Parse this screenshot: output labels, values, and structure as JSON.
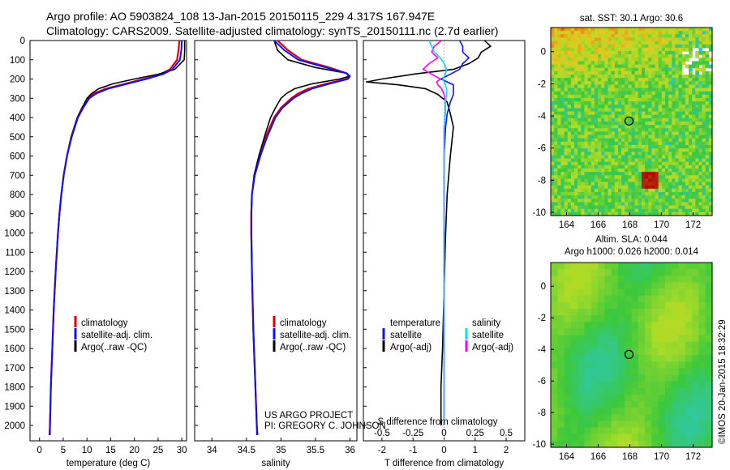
{
  "header": {
    "line1": "Argo profile: AO 5903824_108 13-Jan-2015 20150115_229 4.317S 167.947E",
    "line2": "Climatology: CARS2009. Satellite-adjusted climatology: synTS_20150111.nc (2.7d earlier)"
  },
  "credit": "©IMOS 20-Jan-2015 18:32:29",
  "project": {
    "line1": "US ARGO PROJECT",
    "line2": "PI: GREGORY C. JOHNSON"
  },
  "colors": {
    "climatology": "#e00000",
    "satellite": "#1010ff",
    "argo": "#000000",
    "sal_satellite": "#00e0ff",
    "sal_argo": "#ff00ff"
  },
  "chart_data": [
    {
      "type": "line",
      "name": "temperature",
      "xlabel": "temperature (deg C)",
      "ylabel": "",
      "xlim": [
        -2,
        31
      ],
      "ylim": [
        2080,
        0
      ],
      "xticks": [
        0,
        5,
        10,
        15,
        20,
        25,
        30
      ],
      "yticks": [
        0,
        100,
        200,
        300,
        400,
        500,
        600,
        700,
        800,
        900,
        1000,
        1100,
        1200,
        1300,
        1400,
        1500,
        1600,
        1700,
        1800,
        1900,
        2000
      ],
      "legend": [
        "climatology",
        "satellite-adj. clim.",
        "Argo(..raw -QC)"
      ],
      "depth": [
        0,
        50,
        100,
        150,
        175,
        200,
        225,
        250,
        275,
        300,
        350,
        400,
        500,
        600,
        700,
        800,
        900,
        1000,
        1200,
        1400,
        1600,
        1800,
        2000,
        2050
      ],
      "series": [
        {
          "name": "climatology",
          "values": [
            29.5,
            29.3,
            29.0,
            27.5,
            25.5,
            22.0,
            18.0,
            14.0,
            11.5,
            10.2,
            9.0,
            8.0,
            6.7,
            5.8,
            5.1,
            4.6,
            4.2,
            3.9,
            3.4,
            3.0,
            2.7,
            2.4,
            2.2,
            2.1
          ]
        },
        {
          "name": "satellite",
          "values": [
            30.0,
            29.9,
            29.6,
            28.0,
            26.0,
            22.5,
            18.5,
            14.5,
            12.0,
            10.5,
            9.2,
            8.1,
            6.8,
            5.8,
            5.1,
            4.6,
            4.2,
            3.9,
            3.4,
            3.0,
            2.7,
            2.4,
            2.2,
            2.2
          ]
        },
        {
          "name": "argo",
          "values": [
            30.6,
            30.6,
            30.5,
            28.5,
            25.0,
            20.0,
            15.5,
            12.5,
            11.0,
            10.0,
            9.0,
            8.0,
            6.7,
            5.8,
            5.1,
            4.6,
            4.2,
            3.9,
            3.4,
            3.0,
            2.7,
            2.4,
            2.2,
            2.2
          ]
        }
      ]
    },
    {
      "type": "line",
      "name": "salinity",
      "xlabel": "salinity",
      "xlim": [
        33.75,
        36.1
      ],
      "ylim": [
        2080,
        0
      ],
      "xticks": [
        34,
        34.5,
        35,
        35.5,
        36
      ],
      "legend": [
        "climatology",
        "satellite-adj. clim.",
        "Argo(..raw -QC)"
      ],
      "depth": [
        0,
        50,
        100,
        140,
        170,
        185,
        200,
        225,
        250,
        275,
        300,
        350,
        400,
        500,
        600,
        700,
        800,
        900,
        1000,
        1200,
        1500,
        1800,
        2000,
        2050
      ],
      "series": [
        {
          "name": "climatology",
          "values": [
            34.95,
            35.1,
            35.3,
            35.7,
            35.95,
            35.98,
            35.95,
            35.65,
            35.4,
            35.25,
            35.15,
            35.0,
            34.9,
            34.78,
            34.7,
            34.62,
            34.58,
            34.57,
            34.57,
            34.58,
            34.6,
            34.63,
            34.65,
            34.66
          ]
        },
        {
          "name": "satellite",
          "values": [
            34.9,
            35.05,
            35.25,
            35.65,
            35.95,
            36.0,
            35.97,
            35.7,
            35.45,
            35.3,
            35.18,
            35.02,
            34.92,
            34.8,
            34.7,
            34.62,
            34.58,
            34.57,
            34.57,
            34.58,
            34.6,
            34.63,
            34.65,
            34.66
          ]
        },
        {
          "name": "argo",
          "values": [
            34.9,
            34.95,
            35.1,
            35.5,
            35.95,
            36.0,
            35.85,
            35.45,
            35.2,
            35.08,
            35.0,
            34.92,
            34.85,
            34.76,
            34.68,
            34.61,
            34.58,
            34.57,
            34.57,
            34.58,
            34.6,
            34.63,
            34.65,
            34.65
          ]
        }
      ]
    },
    {
      "type": "line",
      "name": "difference",
      "xlabel": "T difference from climatology",
      "xlabel_top": "S difference from climatology",
      "xlim": [
        -2.6,
        2.6
      ],
      "ylim": [
        2080,
        0
      ],
      "xticks": [
        -2,
        -1,
        0,
        1,
        2
      ],
      "xticks_top": [
        -0.5,
        -0.25,
        0,
        0.25,
        0.5
      ],
      "legend_left": {
        "heading": "temperature",
        "items": [
          "satellite",
          "Argo(-adj)"
        ]
      },
      "legend_right": {
        "heading": "salinity",
        "items": [
          "satellite",
          "Argo(-adj)"
        ]
      },
      "depth": [
        0,
        30,
        60,
        90,
        120,
        150,
        175,
        200,
        215,
        230,
        250,
        280,
        320,
        380,
        450,
        600,
        800,
        1000,
        1300,
        1600,
        1800,
        2000
      ],
      "series": [
        {
          "name": "T satellite",
          "values": [
            0.5,
            0.6,
            0.6,
            0.8,
            0.6,
            0.5,
            0.2,
            -0.1,
            0.1,
            0.3,
            0.3,
            0.3,
            0.2,
            0.1,
            0.05,
            0.0,
            0.0,
            0.0,
            0.0,
            0.0,
            0.0,
            0.0
          ]
        },
        {
          "name": "T argo",
          "values": [
            1.3,
            1.5,
            1.2,
            1.1,
            0.8,
            0.3,
            -1.0,
            -2.0,
            -2.5,
            -1.5,
            -0.6,
            -0.2,
            0.1,
            0.2,
            0.3,
            0.2,
            0.1,
            0.05,
            0.0,
            -0.05,
            -0.1,
            -0.1
          ]
        },
        {
          "name": "S satellite",
          "values": [
            -0.12,
            -0.1,
            -0.08,
            -0.03,
            0.0,
            0.02,
            0.01,
            -0.01,
            0.0,
            0.01,
            0.02,
            0.02,
            0.01,
            0.01,
            0.0,
            0.0,
            0.0,
            0.0,
            0.0,
            0.0,
            0.0,
            0.0
          ]
        },
        {
          "name": "S argo",
          "values": [
            -0.02,
            -0.08,
            -0.1,
            -0.05,
            -0.12,
            -0.17,
            -0.1,
            -0.03,
            -0.06,
            -0.05,
            -0.02,
            0.0,
            0.01,
            0.01,
            0.0,
            0.0,
            0.0,
            0.0,
            0.0,
            0.0,
            0.0,
            0.0
          ]
        }
      ]
    },
    {
      "type": "heatmap",
      "name": "sst_map",
      "title": "sat. SST: 30.1  Argo: 30.6",
      "xlim": [
        163,
        173.2
      ],
      "ylim": [
        -10.2,
        1.5
      ],
      "xticks": [
        164,
        166,
        168,
        170,
        172
      ],
      "yticks": [
        0,
        -2,
        -4,
        -6,
        -8,
        -10
      ],
      "marker": {
        "lon": 167.947,
        "lat": -4.317
      }
    },
    {
      "type": "heatmap",
      "name": "sla_map",
      "title_line1": "Altim. SLA: 0.044",
      "title_line2": "Argo h1000: 0.026 h2000: 0.014",
      "xlim": [
        163,
        173.2
      ],
      "ylim": [
        -10.2,
        1.5
      ],
      "xticks": [
        164,
        166,
        168,
        170,
        172
      ],
      "yticks": [
        0,
        -2,
        -4,
        -6,
        -8,
        -10
      ],
      "marker": {
        "lon": 167.947,
        "lat": -4.317
      }
    }
  ]
}
